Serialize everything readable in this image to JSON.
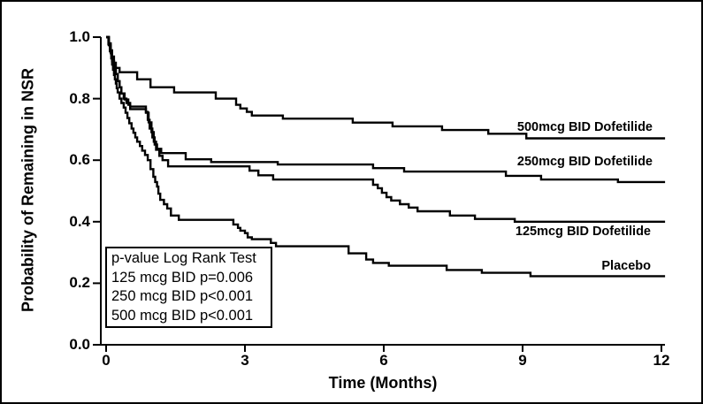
{
  "figure": {
    "background": "#ffffff",
    "border_color": "#000000",
    "line_color": "#000000"
  },
  "chart_data": {
    "type": "line",
    "subtype": "kaplan-meier-step",
    "step": "after",
    "title": "",
    "xlabel": "Time (Months)",
    "ylabel": "Probability of Remaining in NSR",
    "xlim": [
      0,
      12.3
    ],
    "ylim": [
      0.0,
      1.0
    ],
    "x_ticks": [
      "0",
      "3",
      "6",
      "9",
      "12"
    ],
    "y_ticks": [
      "1.0",
      "0.8",
      "0.6",
      "0.4",
      "0.2",
      "0.0"
    ],
    "grid": false,
    "legend_position": "labels-at-curve-ends",
    "series": [
      {
        "name": "500mcg BID Dofetilide",
        "points": [
          [
            0,
            1
          ],
          [
            0.06,
            0.98
          ],
          [
            0.1,
            0.957
          ],
          [
            0.13,
            0.937
          ],
          [
            0.17,
            0.917
          ],
          [
            0.21,
            0.9
          ],
          [
            0.29,
            0.886
          ],
          [
            0.67,
            0.863
          ],
          [
            0.96,
            0.837
          ],
          [
            1.47,
            0.82
          ],
          [
            2.37,
            0.8
          ],
          [
            2.81,
            0.78
          ],
          [
            2.9,
            0.768
          ],
          [
            3.04,
            0.757
          ],
          [
            3.15,
            0.745
          ],
          [
            3.82,
            0.735
          ],
          [
            5.33,
            0.722
          ],
          [
            6.19,
            0.71
          ],
          [
            7.26,
            0.698
          ],
          [
            8.26,
            0.686
          ],
          [
            9.08,
            0.671
          ],
          [
            12.08,
            0.671
          ]
        ]
      },
      {
        "name": "250mcg BID Dofetilide",
        "points": [
          [
            0,
            1
          ],
          [
            0.06,
            0.974
          ],
          [
            0.1,
            0.948
          ],
          [
            0.13,
            0.922
          ],
          [
            0.17,
            0.9
          ],
          [
            0.21,
            0.88
          ],
          [
            0.25,
            0.857
          ],
          [
            0.29,
            0.837
          ],
          [
            0.33,
            0.817
          ],
          [
            0.38,
            0.8
          ],
          [
            0.44,
            0.786
          ],
          [
            0.52,
            0.774
          ],
          [
            0.86,
            0.757
          ],
          [
            0.9,
            0.731
          ],
          [
            0.94,
            0.703
          ],
          [
            1.0,
            0.674
          ],
          [
            1.05,
            0.651
          ],
          [
            1.1,
            0.637
          ],
          [
            1.19,
            0.623
          ],
          [
            1.72,
            0.603
          ],
          [
            2.27,
            0.594
          ],
          [
            3.71,
            0.586
          ],
          [
            5.77,
            0.574
          ],
          [
            6.44,
            0.563
          ],
          [
            8.64,
            0.549
          ],
          [
            9.4,
            0.537
          ],
          [
            11.06,
            0.529
          ],
          [
            12.08,
            0.529
          ]
        ]
      },
      {
        "name": "125mcg BID Dofetilide",
        "points": [
          [
            0,
            1
          ],
          [
            0.06,
            0.974
          ],
          [
            0.1,
            0.948
          ],
          [
            0.13,
            0.922
          ],
          [
            0.17,
            0.9
          ],
          [
            0.21,
            0.88
          ],
          [
            0.25,
            0.857
          ],
          [
            0.29,
            0.837
          ],
          [
            0.33,
            0.817
          ],
          [
            0.4,
            0.797
          ],
          [
            0.48,
            0.78
          ],
          [
            0.52,
            0.766
          ],
          [
            0.86,
            0.754
          ],
          [
            0.92,
            0.723
          ],
          [
            0.98,
            0.691
          ],
          [
            1.03,
            0.66
          ],
          [
            1.08,
            0.634
          ],
          [
            1.15,
            0.614
          ],
          [
            1.22,
            0.6
          ],
          [
            1.34,
            0.58
          ],
          [
            3.1,
            0.566
          ],
          [
            3.29,
            0.551
          ],
          [
            3.61,
            0.537
          ],
          [
            5.77,
            0.52
          ],
          [
            5.87,
            0.509
          ],
          [
            5.96,
            0.494
          ],
          [
            6.06,
            0.48
          ],
          [
            6.16,
            0.469
          ],
          [
            6.35,
            0.457
          ],
          [
            6.54,
            0.446
          ],
          [
            6.73,
            0.434
          ],
          [
            7.43,
            0.42
          ],
          [
            7.97,
            0.409
          ],
          [
            8.83,
            0.4
          ],
          [
            12.08,
            0.4
          ]
        ]
      },
      {
        "name": "Placebo",
        "points": [
          [
            0,
            1
          ],
          [
            0.05,
            0.977
          ],
          [
            0.08,
            0.954
          ],
          [
            0.11,
            0.931
          ],
          [
            0.13,
            0.911
          ],
          [
            0.15,
            0.894
          ],
          [
            0.17,
            0.877
          ],
          [
            0.19,
            0.863
          ],
          [
            0.21,
            0.849
          ],
          [
            0.23,
            0.834
          ],
          [
            0.25,
            0.82
          ],
          [
            0.29,
            0.8
          ],
          [
            0.33,
            0.786
          ],
          [
            0.38,
            0.771
          ],
          [
            0.42,
            0.754
          ],
          [
            0.46,
            0.737
          ],
          [
            0.5,
            0.72
          ],
          [
            0.55,
            0.703
          ],
          [
            0.59,
            0.689
          ],
          [
            0.63,
            0.674
          ],
          [
            0.67,
            0.66
          ],
          [
            0.73,
            0.646
          ],
          [
            0.78,
            0.631
          ],
          [
            0.84,
            0.617
          ],
          [
            0.9,
            0.6
          ],
          [
            0.96,
            0.571
          ],
          [
            1.02,
            0.546
          ],
          [
            1.06,
            0.529
          ],
          [
            1.1,
            0.514
          ],
          [
            1.13,
            0.491
          ],
          [
            1.17,
            0.471
          ],
          [
            1.25,
            0.457
          ],
          [
            1.32,
            0.443
          ],
          [
            1.4,
            0.42
          ],
          [
            1.57,
            0.406
          ],
          [
            2.75,
            0.391
          ],
          [
            2.85,
            0.38
          ],
          [
            2.9,
            0.371
          ],
          [
            3.0,
            0.363
          ],
          [
            3.06,
            0.349
          ],
          [
            3.15,
            0.343
          ],
          [
            3.56,
            0.331
          ],
          [
            3.67,
            0.32
          ],
          [
            5.24,
            0.297
          ],
          [
            5.62,
            0.277
          ],
          [
            5.77,
            0.266
          ],
          [
            6.11,
            0.257
          ],
          [
            7.36,
            0.243
          ],
          [
            8.12,
            0.234
          ],
          [
            9.17,
            0.223
          ],
          [
            12.08,
            0.223
          ]
        ]
      }
    ],
    "annotation_box": {
      "title": "p-value Log Rank Test",
      "lines": [
        "125 mcg BID p=0.006",
        "250 mcg BID p<0.001",
        "500 mcg BID p<0.001"
      ]
    }
  }
}
